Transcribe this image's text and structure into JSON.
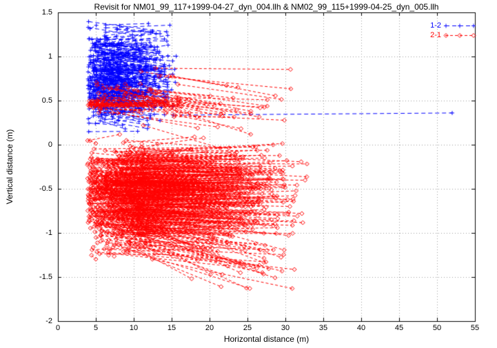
{
  "chart_data": {
    "type": "scatter",
    "title": "Revisit for NM01_99_117+1999-04-27_dyn_004.llh & NM02_99_115+1999-04-25_dyn_005.llh",
    "xlabel": "Horizontal distance (m)",
    "ylabel": "Vertical distance (m)",
    "xlim": [
      0,
      55
    ],
    "ylim": [
      -2,
      1.5
    ],
    "xticks": [
      0,
      5,
      10,
      15,
      20,
      25,
      30,
      35,
      40,
      45,
      50,
      55
    ],
    "yticks": [
      -2,
      -1.5,
      -1,
      -0.5,
      0,
      0.5,
      1,
      1.5
    ],
    "grid": true,
    "grid_color": "#9a9a9a",
    "border_color": "#000000",
    "background": "#ffffff",
    "legend_position": "top-right",
    "series": [
      {
        "name": "1-2",
        "color": "#0000ff",
        "marker": "plus",
        "linestyle": "dashed",
        "dash": [
          6,
          4
        ],
        "seed": 42,
        "y2_clamp": [
          0.12,
          1.43
        ],
        "clusters": [
          {
            "count": 300,
            "x1": [
              3.9,
              8.5
            ],
            "len": [
              0.2,
              7.5
            ],
            "x2max": 16.3,
            "y_mean": 0.72,
            "y_sd": 0.27,
            "y_min": 0.13,
            "y_max": 1.42,
            "dy": [
              -0.1,
              0.1
            ]
          },
          {
            "count": 40,
            "x1": [
              4.0,
              6.5
            ],
            "len": [
              5.0,
              10.5
            ],
            "x2max": 16.3,
            "y_mean": 0.98,
            "y_sd": 0.24,
            "y_min": 0.3,
            "y_max": 1.4,
            "dy": [
              -0.15,
              0.05
            ]
          }
        ],
        "segments": [
          [
            15.2,
            0.335,
            52.0,
            0.36
          ]
        ]
      },
      {
        "name": "2-1",
        "color": "#ff0000",
        "marker": "diamond",
        "linestyle": "dashed",
        "dash": [
          4,
          3
        ],
        "seed": 7,
        "y2_clamp": [
          -1.63,
          0.92
        ],
        "clusters": [
          {
            "count": 620,
            "x1": [
              3.9,
              12.0
            ],
            "len": [
              0.5,
              22.0
            ],
            "x2max": 34.8,
            "y_mean": -0.55,
            "y_sd": 0.28,
            "y_min": -1.28,
            "y_max": 0.05,
            "dy": [
              -0.15,
              0.1
            ]
          },
          {
            "count": 35,
            "x1": [
              4.0,
              6.0
            ],
            "len": [
              4.0,
              11.0
            ],
            "x2max": 16.0,
            "y_mean": 0.46,
            "y_sd": 0.03,
            "y_min": 0.38,
            "y_max": 0.55,
            "dy": [
              -0.03,
              0.03
            ]
          },
          {
            "count": 45,
            "x1": [
              5.0,
              16.0
            ],
            "len": [
              3.0,
              18.0
            ],
            "x2max": 34.0,
            "y_mean": 0.55,
            "y_sd": 0.18,
            "y_min": 0.2,
            "y_max": 0.92,
            "dy": [
              -0.3,
              0.02
            ]
          },
          {
            "count": 40,
            "x1": [
              5.0,
              13.0
            ],
            "len": [
              10.0,
              22.0
            ],
            "x2max": 33.5,
            "y_mean": -0.98,
            "y_sd": 0.15,
            "y_min": -1.3,
            "y_max": -0.75,
            "dy": [
              -0.55,
              -0.1
            ]
          }
        ],
        "segments": []
      }
    ]
  }
}
